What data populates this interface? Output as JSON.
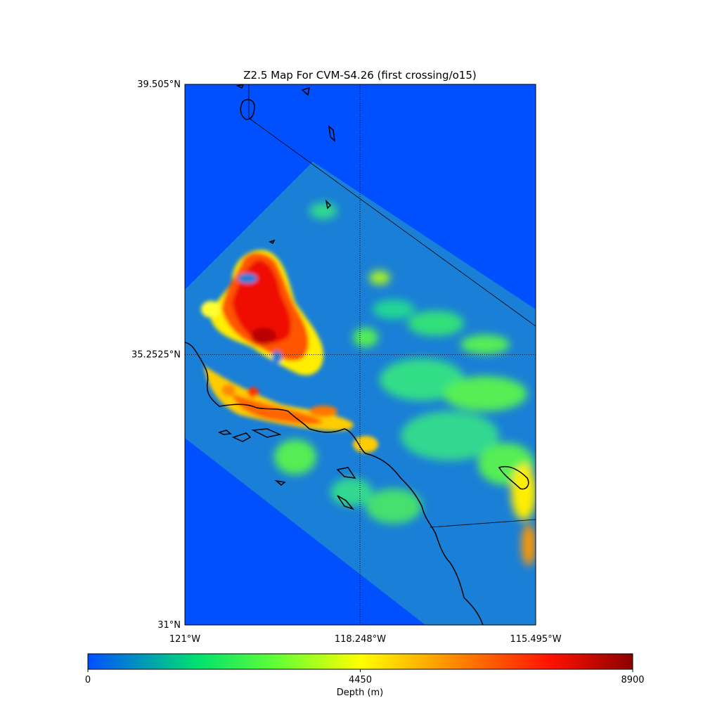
{
  "title": "Z2.5 Map For CVM-S4.26 (first crossing/o15)",
  "map": {
    "lon_min": -121.0,
    "lon_max": -115.495,
    "lat_min": 31.0,
    "lat_max": 39.505,
    "x_ticks": [
      {
        "lon": -121.0,
        "label": "121°W"
      },
      {
        "lon": -118.248,
        "label": "118.248°W"
      },
      {
        "lon": -115.495,
        "label": "115.495°W"
      }
    ],
    "y_ticks": [
      {
        "lat": 39.505,
        "label": "39.505°N"
      },
      {
        "lat": 35.2525,
        "label": "35.2525°N"
      },
      {
        "lat": 31.0,
        "label": "31°N"
      }
    ],
    "gridlines": {
      "lon": -118.248,
      "lat": 35.2525,
      "style": "dotted"
    }
  },
  "colorbar": {
    "label": "Depth (m)",
    "min": 0,
    "max": 8900,
    "ticks": [
      {
        "value": 0,
        "label": "0"
      },
      {
        "value": 4450,
        "label": "4450"
      },
      {
        "value": 8900,
        "label": "8900"
      }
    ],
    "colormap": "jet-like",
    "colors": [
      "#0050ff",
      "#00f060",
      "#ffff00",
      "#ff0000",
      "#8b0000"
    ]
  },
  "colors": {
    "outside_model": "#0050ff",
    "model_background": "#1a7fd6",
    "coastline": "#000000"
  }
}
